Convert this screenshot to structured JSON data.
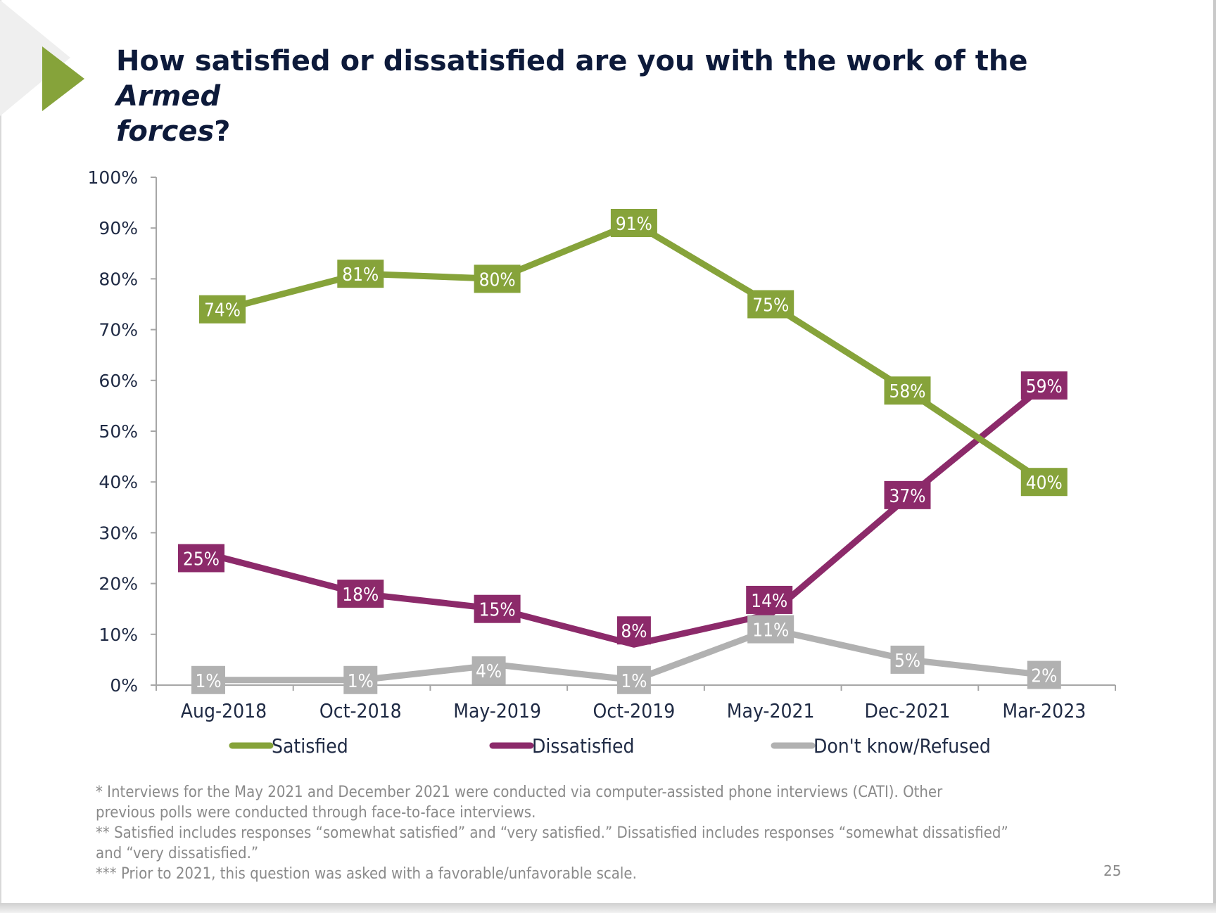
{
  "slide": {
    "title_part1": "How satisfied or dissatisfied are you with the work of the ",
    "title_italic1": "Armed",
    "title_italic2": "forces",
    "title_part2": "?",
    "notes": [
      "* Interviews for the May 2021 and  December 2021 were conducted via computer-assisted phone interviews (CATI). Other",
      "previous polls were conducted through face-to-face interviews.",
      "** Satisfied includes responses “somewhat satisfied” and “very satisfied.” Dissatisfied includes responses “somewhat dissatisfied”",
      "and “very dissatisfied.”",
      "*** Prior to 2021, this question was asked with a favorable/unfavorable scale."
    ],
    "page_number": "25",
    "accent_color": "#86a33a"
  },
  "chart_data": {
    "type": "line",
    "categories": [
      "Aug-2018",
      "Oct-2018",
      "May-2019",
      "Oct-2019",
      "May-2021",
      "Dec-2021",
      "Mar-2023"
    ],
    "ylim": [
      0,
      100
    ],
    "yticks": [
      "0%",
      "10%",
      "20%",
      "30%",
      "40%",
      "50%",
      "60%",
      "70%",
      "80%",
      "90%",
      "100%"
    ],
    "legend_position": "bottom",
    "grid": false,
    "series": [
      {
        "name": "Satisfied",
        "color": "#86a33a",
        "values": [
          74,
          81,
          80,
          91,
          75,
          58,
          40
        ],
        "labels": [
          "74%",
          "81%",
          "80%",
          "91%",
          "75%",
          "58%",
          "40%"
        ]
      },
      {
        "name": "Dissatisfied",
        "color": "#8c2a6a",
        "values": [
          25,
          18,
          15,
          8,
          14,
          37,
          59
        ],
        "labels": [
          "25%",
          "18%",
          "15%",
          "8%",
          "14%",
          "37%",
          "59%"
        ]
      },
      {
        "name": "Don't know/Refused",
        "color": "#b1b1b1",
        "values": [
          1,
          1,
          4,
          1,
          11,
          5,
          2
        ],
        "labels": [
          "1%",
          "1%",
          "4%",
          "1%",
          "11%",
          "5%",
          "2%"
        ]
      }
    ]
  }
}
